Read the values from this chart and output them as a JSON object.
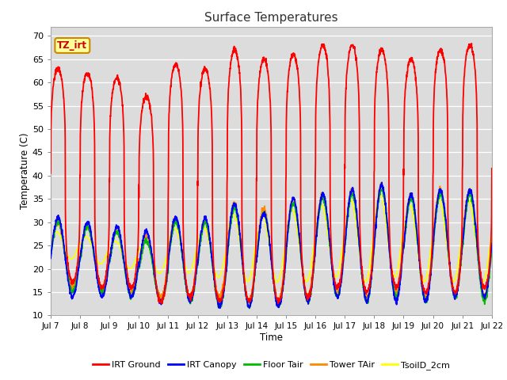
{
  "title": "Surface Temperatures",
  "xlabel": "Time",
  "ylabel": "Temperature (C)",
  "ylim": [
    10,
    72
  ],
  "yticks": [
    10,
    15,
    20,
    25,
    30,
    35,
    40,
    45,
    50,
    55,
    60,
    65,
    70
  ],
  "x_labels": [
    "Jul 7",
    "Jul 8",
    "Jul 9",
    "Jul 10",
    "Jul 11",
    "Jul 12",
    "Jul 13",
    "Jul 14",
    "Jul 15",
    "Jul 16",
    "Jul 17",
    "Jul 18",
    "Jul 19",
    "Jul 20",
    "Jul 21",
    "Jul 22"
  ],
  "num_days": 15,
  "points_per_day": 144,
  "background_color": "#dcdcdc",
  "irt_ground_color": "#ff0000",
  "irt_canopy_color": "#0000ff",
  "floor_tair_color": "#00bb00",
  "tower_tair_color": "#ff8800",
  "tsoild_2cm_color": "#ffff00",
  "legend_labels": [
    "IRT Ground",
    "IRT Canopy",
    "Floor Tair",
    "Tower TAir",
    "TsoilD_2cm"
  ],
  "annotation_text": "TZ_irt",
  "annotation_bg": "#ffff99",
  "annotation_border": "#cc8800",
  "annotation_text_color": "#cc0000",
  "day_peaks_irt": [
    63,
    62,
    61,
    57,
    64,
    63,
    67,
    65,
    66,
    68,
    68,
    67,
    65,
    67,
    68
  ],
  "day_mins_irt": [
    17,
    16,
    16,
    13,
    14,
    13,
    13,
    13,
    14,
    16,
    15,
    16,
    15,
    15,
    16
  ],
  "day_peaks_canopy": [
    31,
    30,
    29,
    28,
    31,
    31,
    34,
    32,
    35,
    36,
    37,
    38,
    36,
    37,
    37
  ],
  "day_mins_canopy": [
    14,
    14,
    14,
    13,
    13,
    12,
    12,
    12,
    13,
    14,
    13,
    13,
    13,
    14,
    14
  ],
  "day_peaks_floor": [
    30,
    29,
    28,
    26,
    30,
    30,
    33,
    32,
    34,
    35,
    36,
    37,
    35,
    36,
    36
  ],
  "day_mins_floor": [
    15,
    15,
    14,
    13,
    13,
    12,
    12,
    12,
    13,
    14,
    13,
    14,
    13,
    14,
    13
  ],
  "day_peaks_tower": [
    30,
    29,
    28,
    27,
    31,
    30,
    34,
    33,
    35,
    36,
    37,
    38,
    36,
    37,
    37
  ],
  "day_mins_tower": [
    16,
    16,
    15,
    14,
    14,
    14,
    13,
    13,
    14,
    15,
    14,
    15,
    14,
    15,
    14
  ],
  "day_peaks_tsoil": [
    28,
    27,
    26,
    26,
    29,
    29,
    32,
    31,
    33,
    34,
    35,
    36,
    34,
    35,
    35
  ],
  "day_mins_tsoil": [
    22,
    21,
    20,
    19,
    19,
    18,
    17,
    17,
    17,
    18,
    17,
    18,
    17,
    17,
    17
  ]
}
